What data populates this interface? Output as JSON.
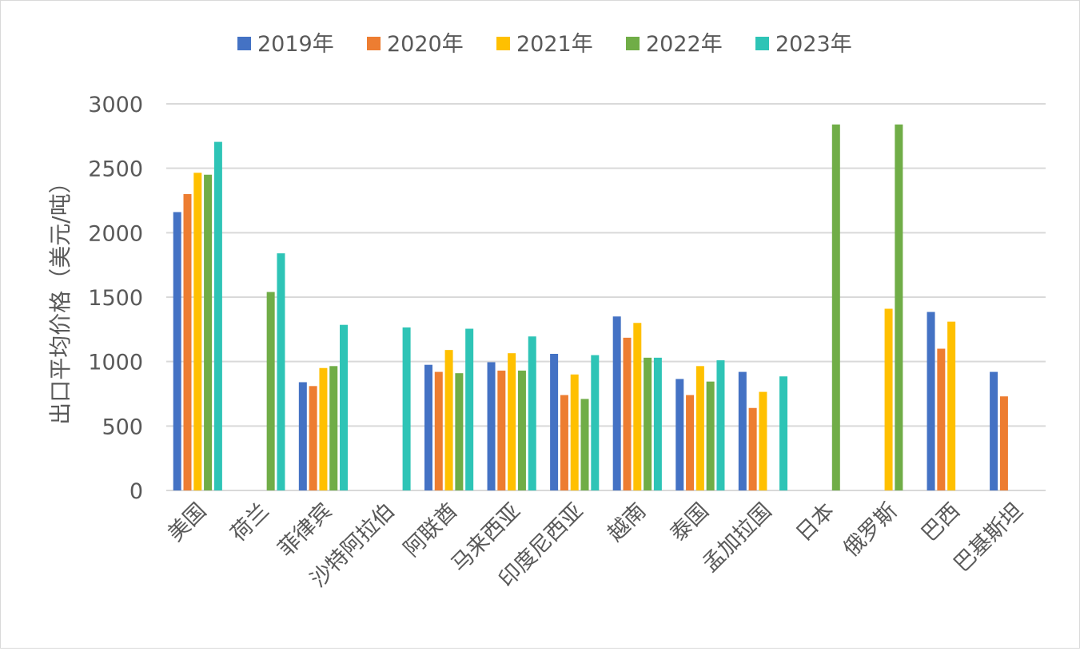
{
  "chart_data": {
    "type": "bar",
    "title": "",
    "xlabel": "",
    "ylabel": "出口平均价格（美元/吨）",
    "ylim": [
      0,
      3000
    ],
    "yticks": [
      0,
      500,
      1000,
      1500,
      2000,
      2500,
      3000
    ],
    "grid": true,
    "legend_position": "top",
    "categories": [
      "美国",
      "荷兰",
      "菲律宾",
      "沙特阿拉伯",
      "阿联酋",
      "马来西亚",
      "印度尼西亚",
      "越南",
      "泰国",
      "孟加拉国",
      "日本",
      "俄罗斯",
      "巴西",
      "巴基斯坦"
    ],
    "series": [
      {
        "name": "2019年",
        "color": "#4472C4",
        "values": [
          2160,
          null,
          840,
          null,
          975,
          995,
          1060,
          1350,
          865,
          920,
          null,
          null,
          1385,
          920
        ]
      },
      {
        "name": "2020年",
        "color": "#ED7D31",
        "values": [
          2300,
          null,
          810,
          null,
          920,
          930,
          740,
          1185,
          740,
          640,
          null,
          null,
          1100,
          730
        ]
      },
      {
        "name": "2021年",
        "color": "#FFC000",
        "values": [
          2465,
          null,
          950,
          null,
          1090,
          1065,
          900,
          1300,
          965,
          765,
          null,
          1410,
          1310,
          null
        ]
      },
      {
        "name": "2022年",
        "color": "#70AD47",
        "values": [
          2450,
          1540,
          965,
          null,
          910,
          930,
          710,
          1030,
          845,
          null,
          2840,
          2840,
          null,
          null
        ]
      },
      {
        "name": "2023年",
        "color": "#2EC4B6",
        "values": [
          2705,
          1840,
          1285,
          1265,
          1255,
          1195,
          1050,
          1030,
          1010,
          885,
          null,
          null,
          null,
          null
        ]
      }
    ]
  }
}
